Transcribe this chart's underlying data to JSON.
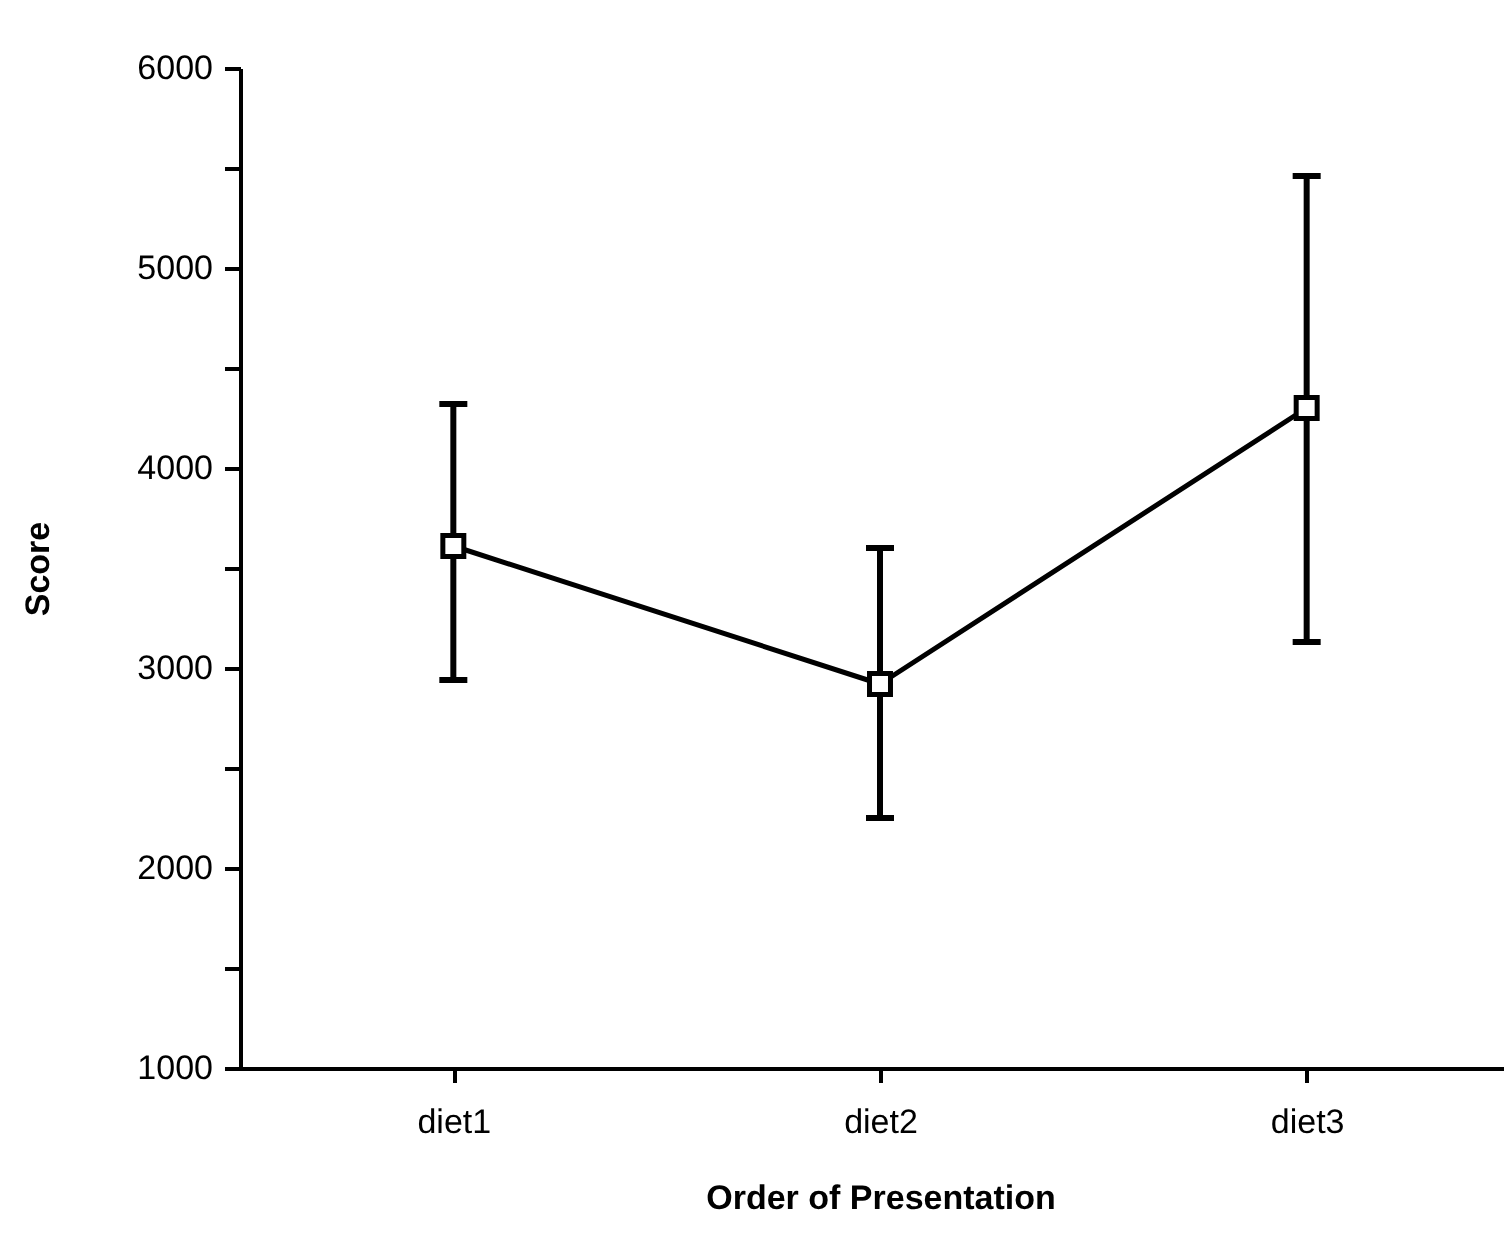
{
  "chart_data": {
    "type": "line",
    "xlabel": "Order of Presentation",
    "ylabel": "Score",
    "categories": [
      "diet1",
      "diet2",
      "diet3"
    ],
    "series": [
      {
        "color": "#000000",
        "values": [
          3610,
          2920,
          4300
        ],
        "errors": [
          [
            2940,
            4320
          ],
          [
            2250,
            3600
          ],
          [
            3130,
            5460
          ]
        ]
      }
    ],
    "ylim": [
      1000,
      6000
    ],
    "yticks": [
      1000,
      {
        "value": 1500,
        "label": null
      },
      2000,
      {
        "value": 2500,
        "label": null
      },
      3000,
      {
        "value": 3500,
        "label": null
      },
      4000,
      {
        "value": 4500,
        "label": null
      },
      5000,
      {
        "value": 5500,
        "label": null
      },
      6000
    ],
    "grid": false,
    "marker": "square",
    "line_style": "solid"
  }
}
